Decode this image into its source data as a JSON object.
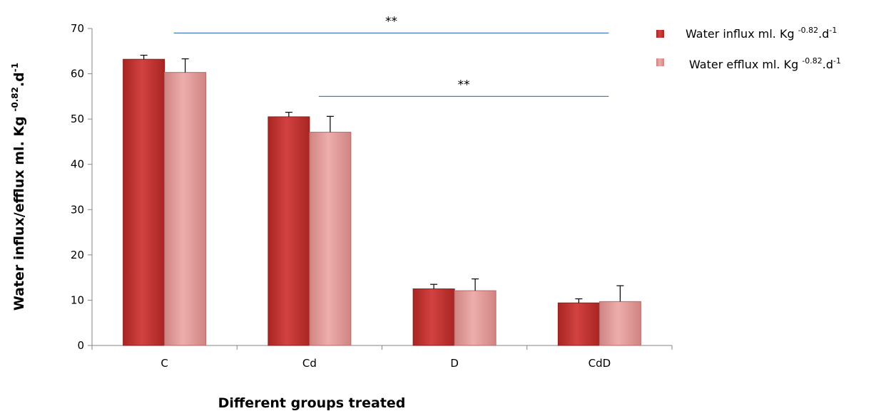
{
  "colors": {
    "influx": "#c0312f",
    "efflux": "#e09494",
    "sigline": "#4a7ebb"
  },
  "chart_data": {
    "type": "bar",
    "categories": [
      "C",
      "Cd",
      "D",
      "CdD"
    ],
    "series": [
      {
        "name": "Water influx ml. Kg -0.82.d-1",
        "values": [
          63.2,
          50.5,
          12.5,
          9.4
        ],
        "errors": [
          0.9,
          1.0,
          1.0,
          0.9
        ]
      },
      {
        "name": "Water efflux ml. Kg -0.82.d-1",
        "values": [
          60.3,
          47.1,
          12.1,
          9.7
        ],
        "errors": [
          3.0,
          3.5,
          2.6,
          3.5
        ]
      }
    ],
    "xlabel": "Different groups treated",
    "ylabel": "Water influx/efflux ml. Kg -0.82.d-1",
    "ylim": [
      0,
      70
    ],
    "yticks": [
      "0",
      "10",
      "20",
      "30",
      "40",
      "50",
      "60",
      "70"
    ],
    "grid": false,
    "legend_position": "top-right",
    "significance": [
      {
        "label": "**",
        "from": "C",
        "to": "CdD",
        "y": 69
      },
      {
        "label": "**",
        "from": "Cd",
        "to": "CdD",
        "y": 55
      }
    ]
  },
  "legend": {
    "influx": {
      "prefix": "Water influx ml. Kg ",
      "exp": "-0.82",
      "mid": ".d",
      "exp2": "-1"
    },
    "efflux": {
      "prefix": "Water efflux ml. Kg ",
      "exp": "-0.82",
      "mid": ".d",
      "exp2": "-1"
    }
  },
  "ylabel_parts": {
    "prefix": "Water influx/efflux ml. Kg ",
    "exp": "-0.82",
    "mid": ".d",
    "exp2": "-1"
  }
}
